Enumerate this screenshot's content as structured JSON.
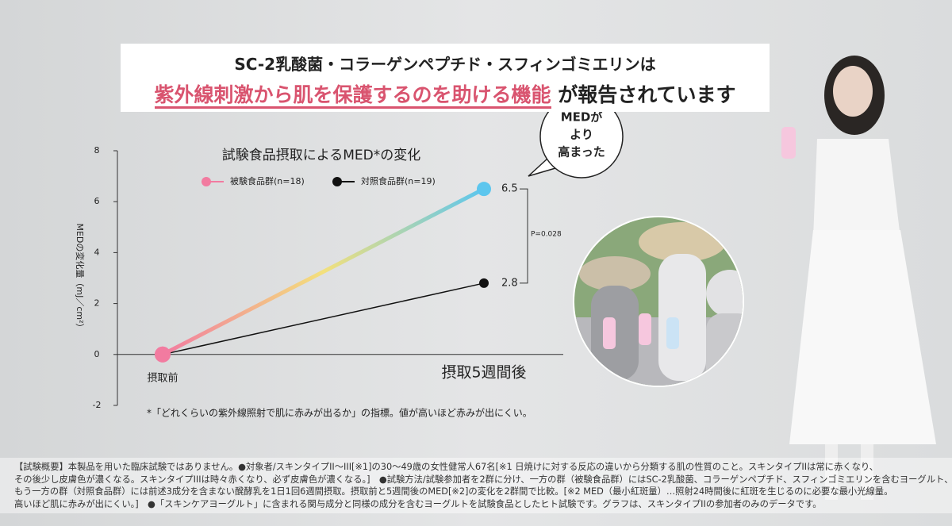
{
  "header": {
    "line1": "SC-2乳酸菌・コラーゲンペプチド・スフィンゴミエリンは",
    "highlight": "紫外線刺激から肌を保護するのを助ける機能",
    "line2_rest": "が報告されています"
  },
  "chart_data": {
    "type": "line",
    "title": "試験食品摂取によるMED*の変化",
    "y_label": "MEDの変化量（mJ／cm²）",
    "categories": [
      "摂取前",
      "摂取5週間後"
    ],
    "series": [
      {
        "name": "被験食品群(n=18)",
        "color": "#f27ba0",
        "gradient": [
          "#f27ba0",
          "#f3e07c",
          "#5cc6ee"
        ],
        "end_color": "#5cc6ee",
        "values": [
          0,
          6.5
        ]
      },
      {
        "name": "対照食品群(n=19)",
        "color": "#111111",
        "values": [
          0,
          2.8
        ]
      }
    ],
    "ylim": [
      -2,
      8
    ],
    "yticks": [
      -2,
      0,
      2,
      4,
      6,
      8
    ],
    "annotation": "P=0.028",
    "callout": [
      "MEDが",
      "より",
      "高まった"
    ],
    "footnote": "*「どれくらいの紫外線照射で肌に赤みが出るか」の指標。値が高いほど赤みが出にくい。"
  },
  "disclaimer": [
    "【試験概要】本製品を用いた臨床試験ではありません。●対象者/スキンタイプII〜III[※1]の30〜49歳の女性健常人67名[※1 日焼けに対する反応の違いから分類する肌の性質のこと。スキンタイプIIは常に赤くなり、",
    "その後少し皮膚色が濃くなる。スキンタイプIIIは時々赤くなり、必ず皮膚色が濃くなる。]　●試験方法/試験参加者を2群に分け、一方の群（被験食品群）にはSC-2乳酸菌、コラーゲンペプチド、スフィンゴミエリンを含むヨーグルト、",
    "もう一方の群（対照食品群）には前述3成分を含まない醗酵乳を1日1回6週間摂取。摂取前と5週間後のMED[※2]の変化を2群間で比較。[※2 MED（最小紅斑量）…照射24時間後に紅斑を生じるのに必要な最小光線量。",
    "高いほど肌に赤みが出にくい。]　●「スキンケアヨーグルト」に含まれる関与成分と同様の成分を含むヨーグルトを試験食品としたヒト試験です。グラフは、スキンタイプIIの参加者のみのデータです。"
  ]
}
